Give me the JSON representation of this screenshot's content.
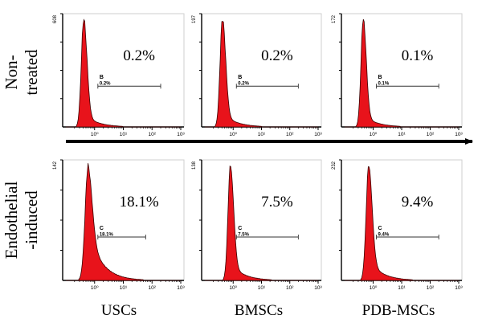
{
  "chart_data": {
    "type": "histogram-grid",
    "row_labels": [
      [
        "Non-",
        "treated"
      ],
      [
        "Endothelial",
        "-induced"
      ]
    ],
    "column_labels": [
      "USCs",
      "BMSCs",
      "PDB-MSCs"
    ],
    "x_ticks": [
      "10⁰",
      "10¹",
      "10²",
      "10³"
    ],
    "x_scale": "log",
    "xlim": [
      0.1,
      1000
    ],
    "arrow": true,
    "panels": [
      {
        "name": "USCs-non-treated",
        "ymax_label": "608",
        "percent": "0.2%",
        "gate_name": "B",
        "gate_percent": "0.2%",
        "gate_range": [
          1.3,
          200
        ],
        "peak": 0.42,
        "spread": 0.16,
        "tail": 0.12
      },
      {
        "name": "BMSCs-non-treated",
        "ymax_label": "197",
        "percent": "0.2%",
        "gate_name": "B",
        "gate_percent": "0.2%",
        "gate_range": [
          1.3,
          200
        ],
        "peak": 0.42,
        "spread": 0.16,
        "tail": 0.13
      },
      {
        "name": "PDB-MSCs-non-treated",
        "ymax_label": "172",
        "percent": "0.1%",
        "gate_name": "B",
        "gate_percent": "0.1%",
        "gate_range": [
          1.3,
          200
        ],
        "peak": 0.45,
        "spread": 0.15,
        "tail": 0.11
      },
      {
        "name": "USCs-endothelial-induced",
        "ymax_label": "142",
        "percent": "18.1%",
        "gate_name": "C",
        "gate_percent": "18.1%",
        "gate_range": [
          1.3,
          60
        ],
        "peak": 0.6,
        "spread": 0.2,
        "tail": 0.45
      },
      {
        "name": "BMSCs-endothelial-induced",
        "ymax_label": "138",
        "percent": "7.5%",
        "gate_name": "C",
        "gate_percent": "7.5%",
        "gate_range": [
          1.3,
          200
        ],
        "peak": 0.8,
        "spread": 0.16,
        "tail": 0.15
      },
      {
        "name": "PDB-MSCs-endothelial-induced",
        "ymax_label": "232",
        "percent": "9.4%",
        "gate_name": "C",
        "gate_percent": "9.4%",
        "gate_range": [
          1.3,
          200
        ],
        "peak": 0.7,
        "spread": 0.17,
        "tail": 0.18
      }
    ]
  }
}
